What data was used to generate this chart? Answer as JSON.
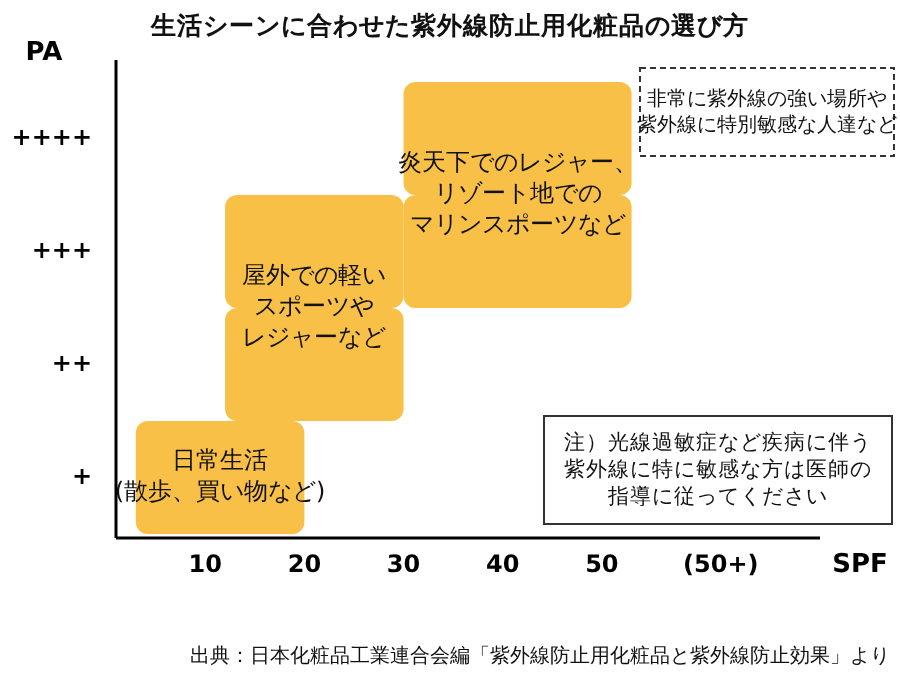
{
  "chart_data": {
    "type": "bar",
    "orientation": "horizontal",
    "title": "生活シーンに合わせた紫外線防止用化粧品の選び方",
    "xlabel": "SPF",
    "ylabel": "PA",
    "categories": [
      "++++",
      "+++",
      "++",
      "+"
    ],
    "xlim": [
      1,
      72
    ],
    "xticks": [
      10,
      20,
      30,
      40,
      50,
      {
        "value": 62,
        "label": "(50+)"
      }
    ],
    "series": [
      {
        "name": "日常生活\n(散歩、買い物など)",
        "color": "#f8b934",
        "base": [
          null,
          null,
          null,
          3
        ],
        "values": [
          null,
          null,
          null,
          17
        ]
      },
      {
        "name": "屋外での軽いスポーツやレジャーなど",
        "color": "#f8b934",
        "base": [
          null,
          12,
          12,
          null
        ],
        "values": [
          null,
          18,
          18,
          null
        ]
      },
      {
        "name": "炎天下でのレジャー、リゾート地でのマリンスポーツなど",
        "color": "#f8b934",
        "base": [
          30,
          30,
          null,
          null
        ],
        "values": [
          23,
          23,
          null,
          null
        ]
      }
    ],
    "annotations": [
      "非常に紫外線の強い場所や紫外線に特別敏感な人達など",
      "注）光線過敏症など疾病に伴う紫外線に特に敏感な方は医師の指導に従ってください",
      "出典：日本化粧品工業連合会編「紫外線防止用化粧品と紫外線防止効果」より"
    ],
    "grid": false,
    "legend": false
  }
}
